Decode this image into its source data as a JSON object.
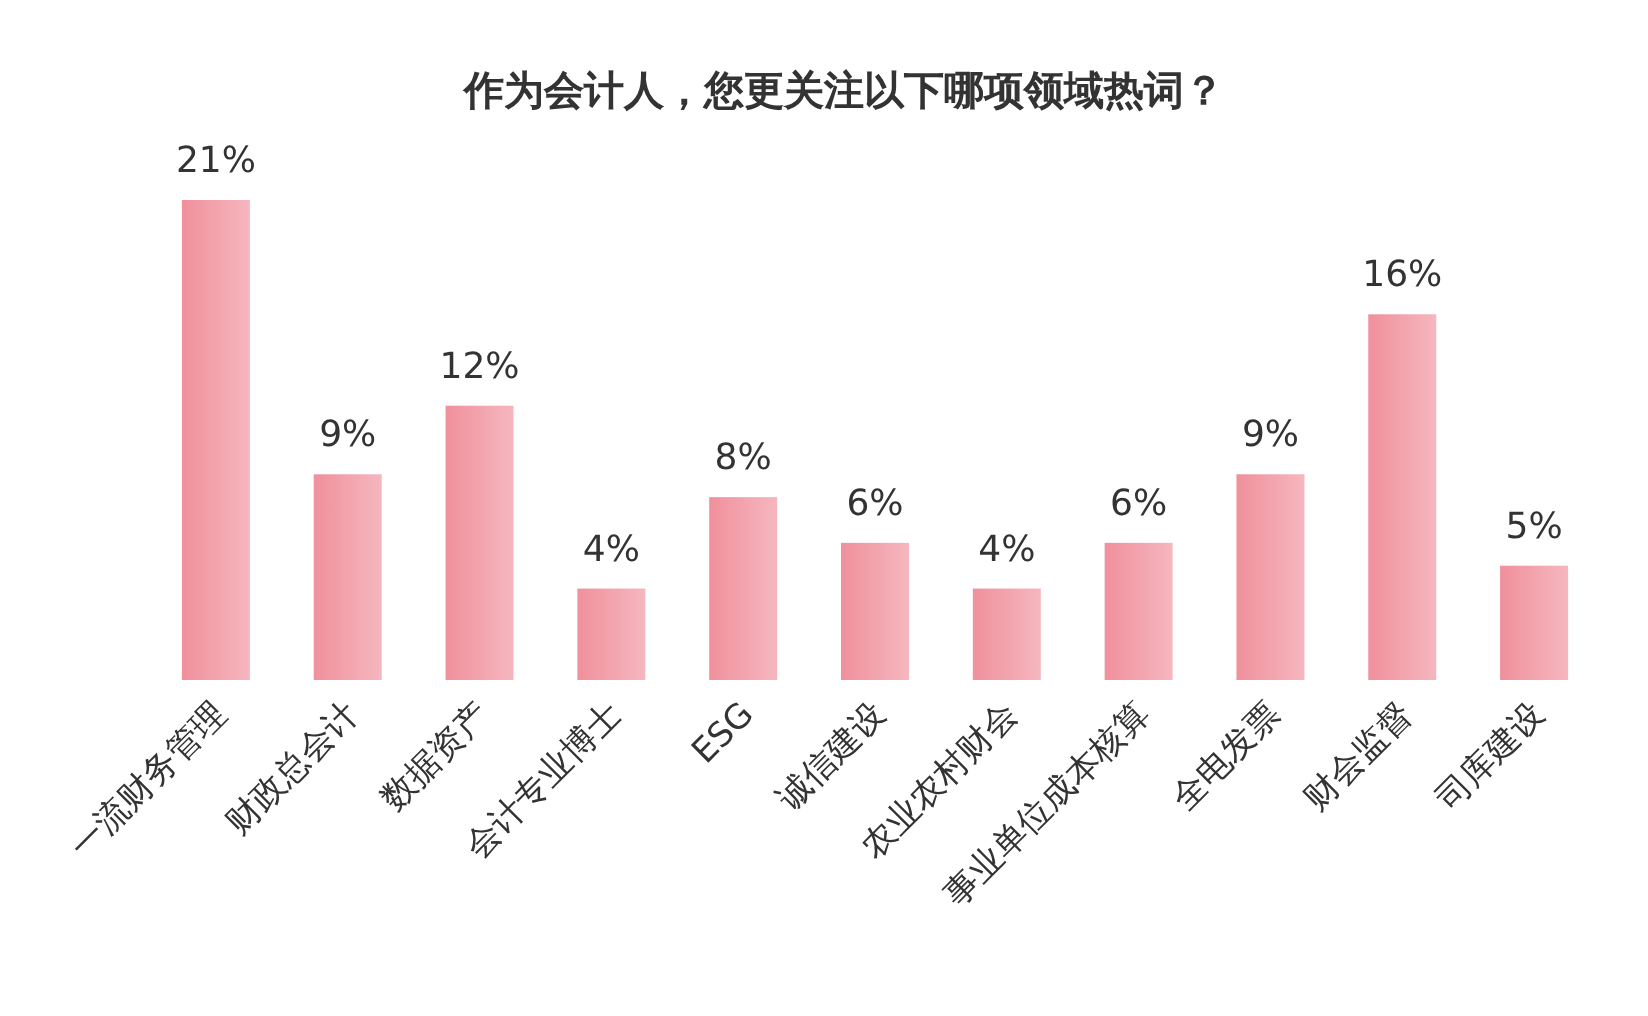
{
  "chart_data": {
    "type": "bar",
    "title": "作为会计人，您更关注以下哪项领域热词？",
    "categories": [
      "一流财务管理",
      "财政总会计",
      "数据资产",
      "会计专业博士",
      "ESG",
      "诚信建设",
      "农业农村财会",
      "事业单位成本核算",
      "全电发票",
      "财会监督",
      "司库建设"
    ],
    "values": [
      21,
      9,
      12,
      4,
      8,
      6,
      4,
      6,
      9,
      16,
      5
    ],
    "value_labels": [
      "21%",
      "9%",
      "12%",
      "4%",
      "8%",
      "6%",
      "4%",
      "6%",
      "9%",
      "16%",
      "5%"
    ],
    "color": "#f0909c"
  }
}
